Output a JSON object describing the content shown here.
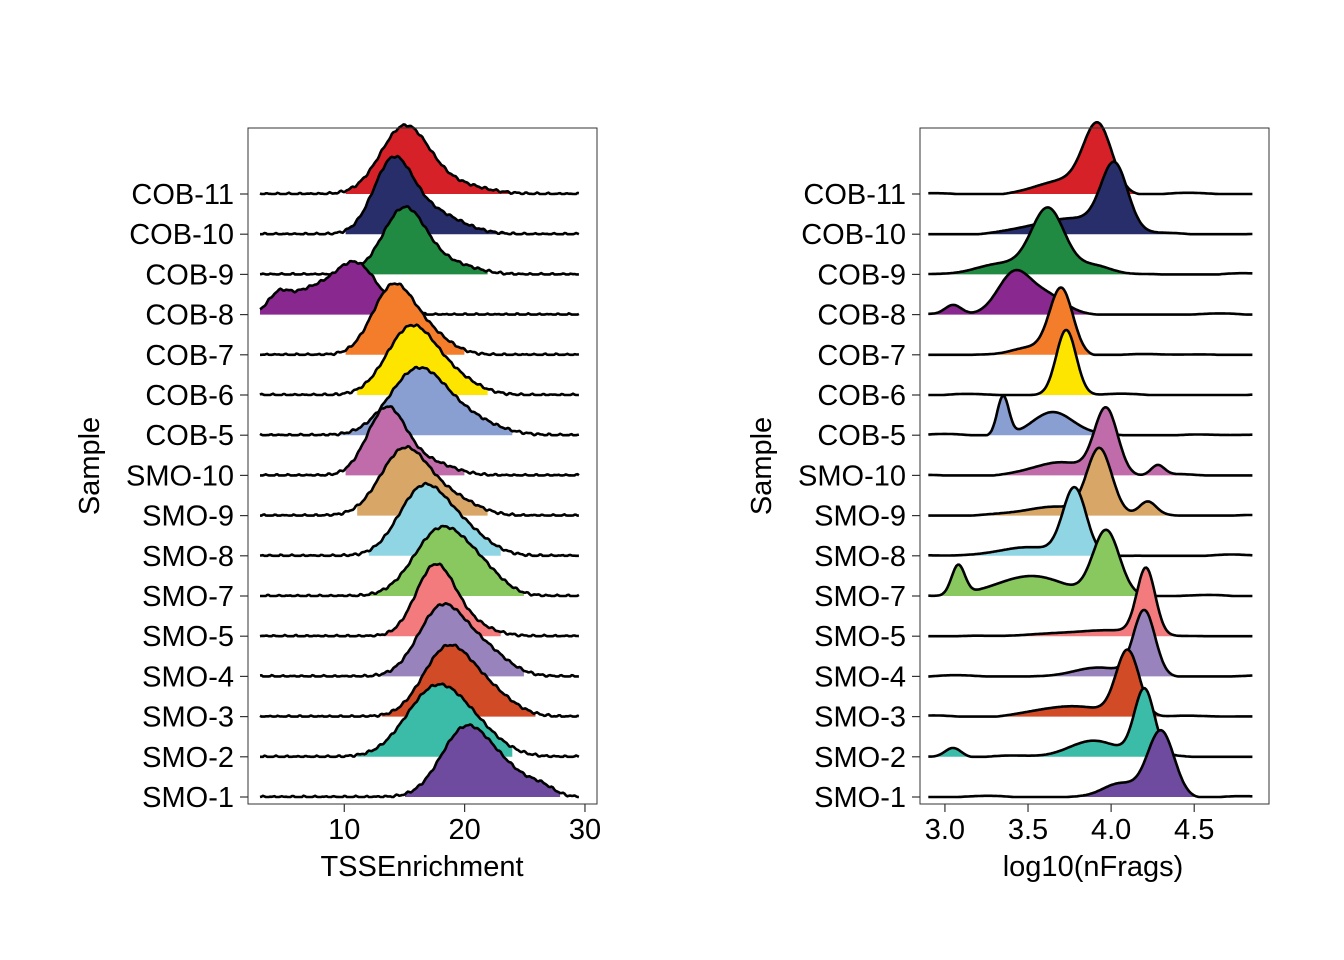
{
  "samples": [
    "COB-11",
    "COB-10",
    "COB-9",
    "COB-8",
    "COB-7",
    "COB-6",
    "COB-5",
    "SMO-10",
    "SMO-9",
    "SMO-8",
    "SMO-7",
    "SMO-5",
    "SMO-4",
    "SMO-3",
    "SMO-2",
    "SMO-1"
  ],
  "colors": [
    "#D62128",
    "#272E6A",
    "#208A42",
    "#89288F",
    "#F47D2B",
    "#FEE500",
    "#8A9FD1",
    "#C06CAB",
    "#D8A767",
    "#90D5E4",
    "#89C75F",
    "#F37B7D",
    "#9983BD",
    "#D24B27",
    "#3BBCA8",
    "#6E4B9E"
  ],
  "chart_data": [
    {
      "type": "ridgeline",
      "xlabel": "TSSEnrichment",
      "ylabel": "Sample",
      "xlim": [
        2,
        31
      ],
      "xticks": [
        10,
        20,
        30
      ],
      "x_range": [
        3,
        29.5
      ],
      "series": [
        {
          "name": "COB-11",
          "peaks": [
            {
              "mu": 15,
              "sd": 2.0,
              "a": 1.0
            },
            {
              "mu": 19,
              "sd": 2.5,
              "a": 0.15
            }
          ],
          "fill_range": [
            10,
            24
          ]
        },
        {
          "name": "COB-10",
          "peaks": [
            {
              "mu": 14,
              "sd": 1.6,
              "a": 1.0
            },
            {
              "mu": 17,
              "sd": 2.5,
              "a": 0.35
            }
          ],
          "fill_range": [
            10,
            25
          ]
        },
        {
          "name": "COB-9",
          "peaks": [
            {
              "mu": 15,
              "sd": 1.8,
              "a": 1.0
            },
            {
              "mu": 19,
              "sd": 2.0,
              "a": 0.15
            }
          ],
          "fill_range": [
            10,
            22
          ]
        },
        {
          "name": "COB-8",
          "peaks": [
            {
              "mu": 11,
              "sd": 1.8,
              "a": 0.75
            },
            {
              "mu": 7,
              "sd": 2.0,
              "a": 0.35
            },
            {
              "mu": 4.5,
              "sd": 0.8,
              "a": 0.2
            }
          ],
          "fill_range": [
            3,
            16
          ]
        },
        {
          "name": "COB-7",
          "peaks": [
            {
              "mu": 14,
              "sd": 1.7,
              "a": 1.0
            },
            {
              "mu": 17,
              "sd": 1.8,
              "a": 0.3
            }
          ],
          "fill_range": [
            10,
            20
          ]
        },
        {
          "name": "COB-6",
          "peaks": [
            {
              "mu": 15.5,
              "sd": 2.0,
              "a": 1.0
            },
            {
              "mu": 19,
              "sd": 2.0,
              "a": 0.25
            }
          ],
          "fill_range": [
            11,
            22
          ]
        },
        {
          "name": "COB-5",
          "peaks": [
            {
              "mu": 16,
              "sd": 2.3,
              "a": 0.95
            },
            {
              "mu": 20,
              "sd": 2.5,
              "a": 0.25
            }
          ],
          "fill_range": [
            9,
            24
          ]
        },
        {
          "name": "SMO-10",
          "peaks": [
            {
              "mu": 13.5,
              "sd": 1.6,
              "a": 1.0
            },
            {
              "mu": 17,
              "sd": 2.0,
              "a": 0.2
            }
          ],
          "fill_range": [
            10,
            20
          ]
        },
        {
          "name": "SMO-9",
          "peaks": [
            {
              "mu": 15,
              "sd": 2.0,
              "a": 1.0
            },
            {
              "mu": 19,
              "sd": 2.0,
              "a": 0.25
            }
          ],
          "fill_range": [
            11,
            22
          ]
        },
        {
          "name": "SMO-8",
          "peaks": [
            {
              "mu": 16.5,
              "sd": 2.0,
              "a": 1.0
            },
            {
              "mu": 20,
              "sd": 2.0,
              "a": 0.35
            }
          ],
          "fill_range": [
            12,
            23
          ]
        },
        {
          "name": "SMO-7",
          "peaks": [
            {
              "mu": 18,
              "sd": 2.2,
              "a": 1.0
            },
            {
              "mu": 21.5,
              "sd": 1.8,
              "a": 0.3
            }
          ],
          "fill_range": [
            12,
            25
          ]
        },
        {
          "name": "SMO-5",
          "peaks": [
            {
              "mu": 17.5,
              "sd": 1.6,
              "a": 1.0
            },
            {
              "mu": 20,
              "sd": 2.0,
              "a": 0.2
            }
          ],
          "fill_range": [
            13,
            23
          ]
        },
        {
          "name": "SMO-4",
          "peaks": [
            {
              "mu": 18,
              "sd": 1.9,
              "a": 1.0
            },
            {
              "mu": 21.5,
              "sd": 2.0,
              "a": 0.4
            }
          ],
          "fill_range": [
            13,
            25
          ]
        },
        {
          "name": "SMO-3",
          "peaks": [
            {
              "mu": 18.5,
              "sd": 2.0,
              "a": 1.0
            },
            {
              "mu": 22,
              "sd": 2.0,
              "a": 0.35
            }
          ],
          "fill_range": [
            13,
            26
          ]
        },
        {
          "name": "SMO-2",
          "peaks": [
            {
              "mu": 17.5,
              "sd": 2.4,
              "a": 1.0
            },
            {
              "mu": 21,
              "sd": 2.2,
              "a": 0.3
            }
          ],
          "fill_range": [
            11,
            24
          ]
        },
        {
          "name": "SMO-1",
          "peaks": [
            {
              "mu": 20,
              "sd": 2.0,
              "a": 1.0
            },
            {
              "mu": 23.5,
              "sd": 2.0,
              "a": 0.35
            },
            {
              "mu": 26.5,
              "sd": 1.0,
              "a": 0.1
            }
          ],
          "fill_range": [
            15,
            28
          ]
        }
      ]
    },
    {
      "type": "ridgeline",
      "xlabel": "log10(nFrags)",
      "ylabel": "Sample",
      "xlim": [
        2.85,
        4.95
      ],
      "xticks": [
        3.0,
        3.5,
        4.0,
        4.5
      ],
      "x_range": [
        2.9,
        4.85
      ],
      "series": [
        {
          "name": "COB-11",
          "peaks": [
            {
              "mu": 3.92,
              "sd": 0.085,
              "a": 1.0
            },
            {
              "mu": 3.72,
              "sd": 0.15,
              "a": 0.2
            }
          ],
          "fill_range": [
            3.0,
            4.5
          ]
        },
        {
          "name": "COB-10",
          "peaks": [
            {
              "mu": 4.02,
              "sd": 0.08,
              "a": 1.0
            },
            {
              "mu": 3.75,
              "sd": 0.2,
              "a": 0.25
            }
          ],
          "fill_range": [
            3.0,
            4.45
          ]
        },
        {
          "name": "COB-9",
          "peaks": [
            {
              "mu": 3.62,
              "sd": 0.1,
              "a": 1.0
            },
            {
              "mu": 3.35,
              "sd": 0.15,
              "a": 0.15
            },
            {
              "mu": 3.9,
              "sd": 0.1,
              "a": 0.12
            }
          ],
          "fill_range": [
            3.0,
            4.2
          ]
        },
        {
          "name": "COB-8",
          "peaks": [
            {
              "mu": 3.42,
              "sd": 0.1,
              "a": 0.65
            },
            {
              "mu": 3.62,
              "sd": 0.1,
              "a": 0.25
            },
            {
              "mu": 3.05,
              "sd": 0.05,
              "a": 0.15
            }
          ],
          "fill_range": [
            2.9,
            4.75
          ]
        },
        {
          "name": "COB-7",
          "peaks": [
            {
              "mu": 3.7,
              "sd": 0.07,
              "a": 1.0
            },
            {
              "mu": 3.5,
              "sd": 0.1,
              "a": 0.1
            }
          ],
          "fill_range": [
            3.0,
            4.1
          ]
        },
        {
          "name": "COB-6",
          "peaks": [
            {
              "mu": 3.73,
              "sd": 0.06,
              "a": 1.0
            }
          ],
          "fill_range": [
            2.95,
            4.1
          ]
        },
        {
          "name": "COB-5",
          "peaks": [
            {
              "mu": 3.35,
              "sd": 0.035,
              "a": 0.6
            },
            {
              "mu": 3.65,
              "sd": 0.12,
              "a": 0.35
            }
          ],
          "fill_range": [
            3.25,
            4.0
          ]
        },
        {
          "name": "SMO-10",
          "peaks": [
            {
              "mu": 3.97,
              "sd": 0.07,
              "a": 1.0
            },
            {
              "mu": 3.7,
              "sd": 0.15,
              "a": 0.2
            },
            {
              "mu": 4.28,
              "sd": 0.04,
              "a": 0.15
            }
          ],
          "fill_range": [
            3.0,
            4.45
          ]
        },
        {
          "name": "SMO-9",
          "peaks": [
            {
              "mu": 3.93,
              "sd": 0.075,
              "a": 1.0
            },
            {
              "mu": 3.65,
              "sd": 0.15,
              "a": 0.15
            },
            {
              "mu": 4.22,
              "sd": 0.05,
              "a": 0.2
            }
          ],
          "fill_range": [
            2.95,
            4.5
          ]
        },
        {
          "name": "SMO-8",
          "peaks": [
            {
              "mu": 3.78,
              "sd": 0.07,
              "a": 1.0
            },
            {
              "mu": 3.5,
              "sd": 0.15,
              "a": 0.15
            }
          ],
          "fill_range": [
            3.1,
            4.2
          ]
        },
        {
          "name": "SMO-7",
          "peaks": [
            {
              "mu": 3.97,
              "sd": 0.08,
              "a": 1.0
            },
            {
              "mu": 3.08,
              "sd": 0.04,
              "a": 0.45
            },
            {
              "mu": 3.5,
              "sd": 0.2,
              "a": 0.3
            }
          ],
          "fill_range": [
            2.95,
            4.15
          ]
        },
        {
          "name": "SMO-5",
          "peaks": [
            {
              "mu": 4.21,
              "sd": 0.055,
              "a": 1.0
            },
            {
              "mu": 3.9,
              "sd": 0.2,
              "a": 0.1
            }
          ],
          "fill_range": [
            3.0,
            4.6
          ]
        },
        {
          "name": "SMO-4",
          "peaks": [
            {
              "mu": 4.2,
              "sd": 0.065,
              "a": 1.0
            },
            {
              "mu": 3.9,
              "sd": 0.15,
              "a": 0.12
            }
          ],
          "fill_range": [
            3.5,
            4.5
          ]
        },
        {
          "name": "SMO-3",
          "peaks": [
            {
              "mu": 4.1,
              "sd": 0.07,
              "a": 1.0
            },
            {
              "mu": 3.75,
              "sd": 0.2,
              "a": 0.15
            }
          ],
          "fill_range": [
            3.0,
            4.5
          ]
        },
        {
          "name": "SMO-2",
          "peaks": [
            {
              "mu": 4.2,
              "sd": 0.06,
              "a": 1.0
            },
            {
              "mu": 3.9,
              "sd": 0.15,
              "a": 0.25
            },
            {
              "mu": 3.05,
              "sd": 0.05,
              "a": 0.15
            }
          ],
          "fill_range": [
            2.9,
            4.5
          ]
        },
        {
          "name": "SMO-1",
          "peaks": [
            {
              "mu": 4.3,
              "sd": 0.08,
              "a": 1.0
            },
            {
              "mu": 4.05,
              "sd": 0.1,
              "a": 0.2
            }
          ],
          "fill_range": [
            3.5,
            4.55
          ]
        }
      ]
    }
  ]
}
